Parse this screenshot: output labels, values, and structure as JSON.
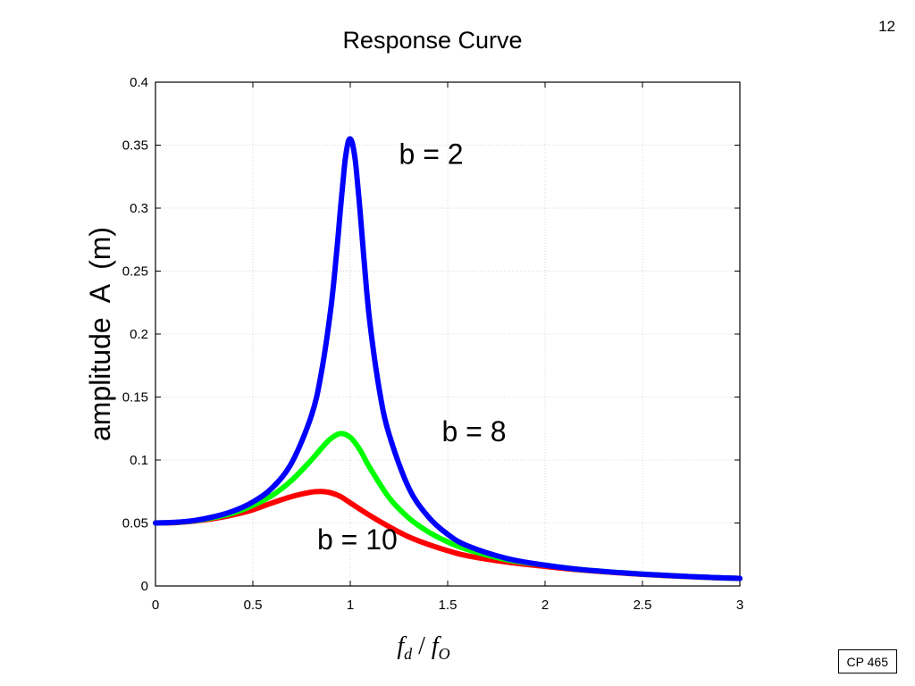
{
  "slide": {
    "number": "12",
    "badge": "CP 465"
  },
  "chart_data": {
    "type": "line",
    "title": "Response Curve",
    "xlabel": {
      "main1": "f",
      "sub1": "d",
      "slash": " / ",
      "main2": "f",
      "sub2": "O"
    },
    "ylabel": "amplitude  A  (m)",
    "xlim": [
      0,
      3
    ],
    "ylim": [
      0,
      0.4
    ],
    "xticks": [
      "0",
      "0.5",
      "1",
      "1.5",
      "2",
      "2.5",
      "3"
    ],
    "yticks": [
      "0",
      "0.05",
      "0.1",
      "0.15",
      "0.2",
      "0.25",
      "0.3",
      "0.35",
      "0.4"
    ],
    "grid": true,
    "legend": "none",
    "series": [
      {
        "name": "b = 2",
        "color": "#0000ff",
        "x": [
          0,
          0.1,
          0.2,
          0.3,
          0.4,
          0.5,
          0.6,
          0.7,
          0.8,
          0.85,
          0.9,
          0.93,
          0.95,
          0.97,
          0.98,
          0.99,
          1.0,
          1.01,
          1.02,
          1.03,
          1.05,
          1.07,
          1.1,
          1.15,
          1.2,
          1.3,
          1.4,
          1.5,
          1.6,
          1.8,
          2.0,
          2.2,
          2.5,
          2.8,
          3.0
        ],
        "y": [
          0.05,
          0.0505,
          0.052,
          0.055,
          0.0595,
          0.0667,
          0.078,
          0.098,
          0.135,
          0.168,
          0.22,
          0.265,
          0.3,
          0.333,
          0.345,
          0.353,
          0.355,
          0.352,
          0.344,
          0.332,
          0.298,
          0.26,
          0.21,
          0.155,
          0.12,
          0.078,
          0.055,
          0.041,
          0.032,
          0.022,
          0.0165,
          0.0128,
          0.0094,
          0.0071,
          0.006
        ],
        "label_value": [
          1.25,
          0.335
        ]
      },
      {
        "name": "b = 8",
        "color": "#00ff00",
        "x": [
          0,
          0.1,
          0.2,
          0.3,
          0.4,
          0.5,
          0.6,
          0.7,
          0.8,
          0.85,
          0.9,
          0.95,
          1.0,
          1.05,
          1.1,
          1.2,
          1.3,
          1.4,
          1.5,
          1.6,
          1.8,
          2.0,
          2.2,
          2.5,
          2.8,
          3.0
        ],
        "y": [
          0.05,
          0.0504,
          0.0518,
          0.0544,
          0.058,
          0.064,
          0.072,
          0.084,
          0.1,
          0.109,
          0.117,
          0.121,
          0.118,
          0.108,
          0.094,
          0.07,
          0.054,
          0.043,
          0.035,
          0.029,
          0.021,
          0.0165,
          0.0128,
          0.0094,
          0.0071,
          0.006
        ],
        "label_value": [
          1.47,
          0.115
        ]
      },
      {
        "name": "b = 10",
        "color": "#ff0000",
        "x": [
          0,
          0.1,
          0.2,
          0.3,
          0.4,
          0.5,
          0.6,
          0.7,
          0.8,
          0.85,
          0.9,
          0.95,
          1.0,
          1.1,
          1.2,
          1.3,
          1.4,
          1.5,
          1.6,
          1.8,
          2.0,
          2.2,
          2.5,
          2.8,
          3.0
        ],
        "y": [
          0.05,
          0.0503,
          0.0515,
          0.0535,
          0.0565,
          0.0605,
          0.066,
          0.071,
          0.0745,
          0.075,
          0.074,
          0.071,
          0.066,
          0.056,
          0.047,
          0.039,
          0.033,
          0.028,
          0.024,
          0.019,
          0.0155,
          0.0125,
          0.0092,
          0.007,
          0.006
        ],
        "label_value": [
          0.83,
          0.029
        ]
      }
    ]
  }
}
